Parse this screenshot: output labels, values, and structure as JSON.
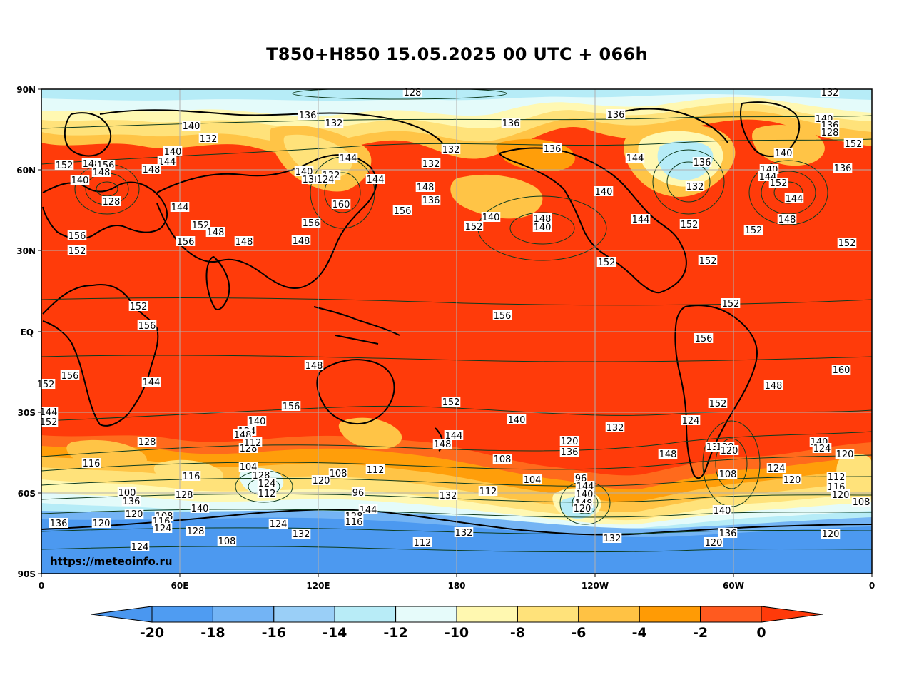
{
  "title": "T850+H850 15.05.2025 00 UTC + 066h",
  "credit": "https://meteoinfo.ru",
  "axes": {
    "lat_labels": [
      "90N",
      "60N",
      "30N",
      "EQ",
      "30S",
      "60S",
      "90S"
    ],
    "lon_labels": [
      "0",
      "60E",
      "120E",
      "180",
      "120W",
      "60W",
      "0"
    ]
  },
  "colorbar": {
    "ticks": [
      "-20",
      "-18",
      "-16",
      "-14",
      "-12",
      "-10",
      "-8",
      "-6",
      "-4",
      "-2",
      "0"
    ],
    "colors": [
      "#4a97f0",
      "#4f9cf2",
      "#73b4f5",
      "#9acff7",
      "#b8ecf7",
      "#e6fbfa",
      "#fff8b0",
      "#ffe27a",
      "#ffc244",
      "#ff9b05",
      "#ff5a1f",
      "#ff3a0a"
    ]
  },
  "colors": {
    "warm_main": "#ff3b0a",
    "warm_2": "#ff6a1c",
    "warm_4": "#ff9e0a",
    "warm_6": "#ffc446",
    "warm_8": "#ffe27a",
    "warm_10": "#fff8b2",
    "cold_12": "#e4fbfa",
    "cold_14": "#b6ecf7",
    "cold_16": "#98cdf6",
    "cold_18": "#74b4f4",
    "cold_20": "#4c99f0",
    "land_outline": "#000000",
    "contour": "#0d3b1e",
    "grid": "#b0b0b0"
  },
  "contour_labels": [
    "128",
    "132",
    "136",
    "140",
    "132",
    "136",
    "136",
    "140",
    "136",
    "132",
    "144",
    "132",
    "136",
    "128",
    "140",
    "152",
    "148",
    "144",
    "148",
    "140",
    "144",
    "136",
    "140",
    "140",
    "136",
    "132",
    "124",
    "144",
    "132",
    "144",
    "136",
    "152",
    "156",
    "148",
    "140",
    "152",
    "148",
    "132",
    "128",
    "136",
    "140",
    "144",
    "156",
    "160",
    "144",
    "140",
    "148",
    "140",
    "152",
    "144",
    "148",
    "152",
    "156",
    "152",
    "152",
    "148",
    "156",
    "148",
    "148",
    "156",
    "152",
    "152",
    "152",
    "152",
    "152",
    "152",
    "156",
    "156",
    "156",
    "148",
    "160",
    "156",
    "144",
    "152",
    "148",
    "156",
    "152",
    "152",
    "144",
    "140",
    "140",
    "132",
    "124",
    "152",
    "124",
    "144",
    "148",
    "148",
    "128",
    "120",
    "136",
    "132",
    "140",
    "124",
    "120",
    "148",
    "128",
    "112",
    "116",
    "108",
    "128",
    "120",
    "124",
    "120",
    "112",
    "108",
    "104",
    "128",
    "108",
    "116",
    "120",
    "112",
    "104",
    "96",
    "112",
    "116",
    "120",
    "108",
    "100",
    "96",
    "132",
    "128",
    "124",
    "112",
    "144",
    "140",
    "148",
    "120",
    "136",
    "140",
    "144",
    "140",
    "136",
    "120",
    "108",
    "116",
    "124",
    "120",
    "128",
    "116",
    "124",
    "120",
    "128",
    "132",
    "136",
    "112",
    "132",
    "120",
    "132",
    "108",
    "124"
  ]
}
